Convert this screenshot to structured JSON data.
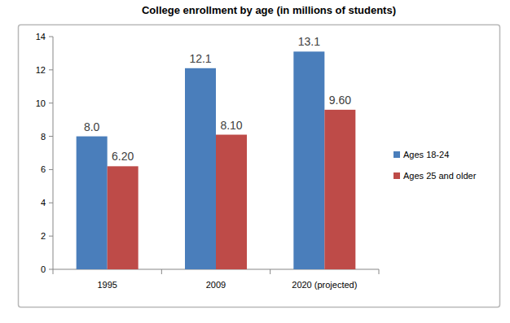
{
  "chart_data": {
    "type": "bar",
    "title": "College enrollment by age (in millions of students)",
    "categories": [
      "1995",
      "2009",
      "2020 (projected)"
    ],
    "series": [
      {
        "name": "Ages 18-24",
        "color": "#4a7ebb",
        "values": [
          8.0,
          12.1,
          13.1
        ],
        "value_labels": [
          "8.0",
          "12.1",
          "13.1"
        ]
      },
      {
        "name": "Ages 25 and older",
        "color": "#be4b48",
        "values": [
          6.2,
          8.1,
          9.6
        ],
        "value_labels": [
          "6.20",
          "8.10",
          "9.60"
        ]
      }
    ],
    "ylim": [
      0,
      14
    ],
    "yticks": [
      0,
      2,
      4,
      6,
      8,
      10,
      12,
      14
    ],
    "grid": false,
    "legend": "right",
    "data_labels": true
  }
}
